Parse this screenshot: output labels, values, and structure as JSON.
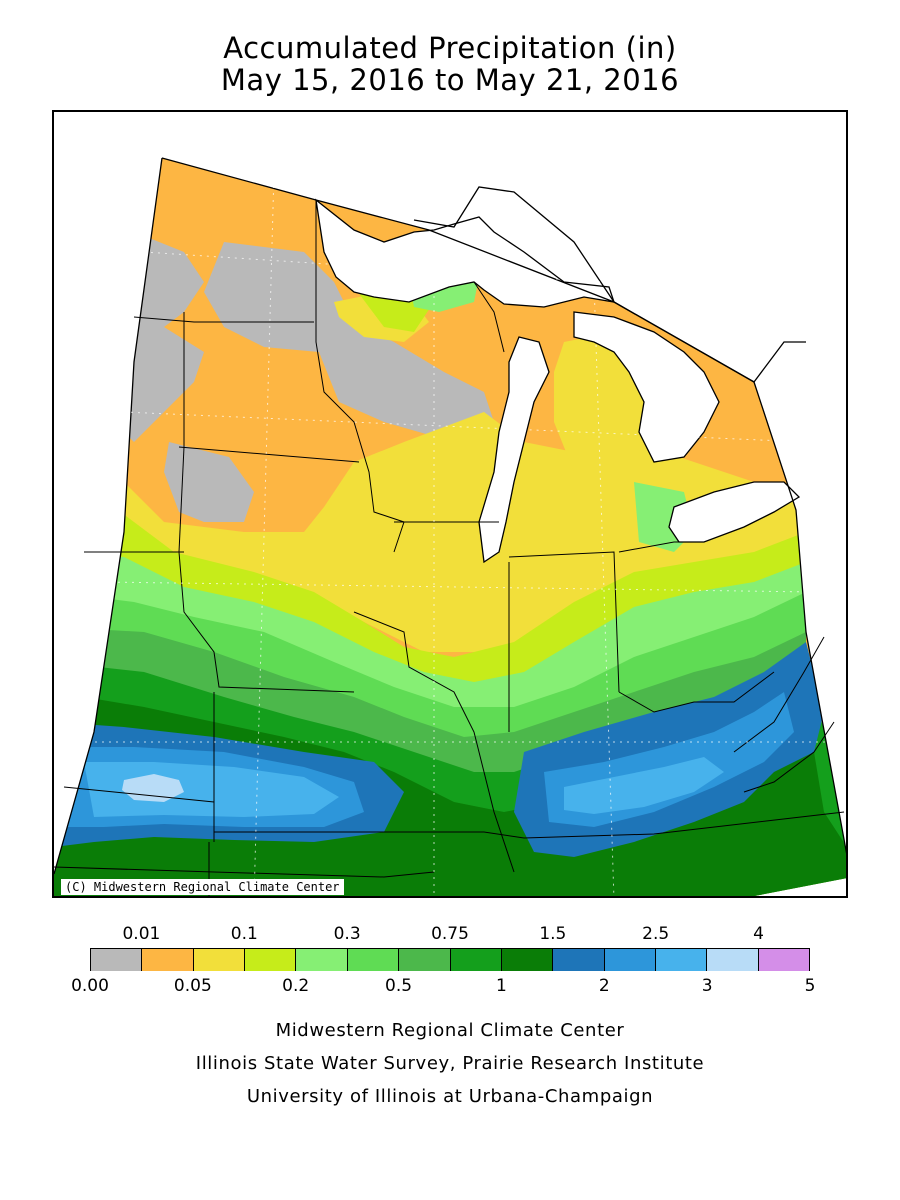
{
  "title": {
    "line1": "Accumulated Precipitation (in)",
    "line2": "May 15, 2016 to May 21, 2016"
  },
  "map": {
    "credit": "(C) Midwestern Regional Climate Center",
    "colors": {
      "gray": "#b9b9b9",
      "orange": "#fdb643",
      "yellow": "#f2df3a",
      "lime": "#c6ec1a",
      "ltgreen": "#86ef74",
      "green1": "#5fdc54",
      "green2": "#4cb84b",
      "green3": "#149f1c",
      "dkgreen": "#0a7d07",
      "blue1": "#1e75b8",
      "blue2": "#2d96da",
      "blue3": "#47b2ec",
      "ltblue": "#b8dcf7",
      "violet": "#d48ee8"
    }
  },
  "legend": {
    "upper_labels": [
      "0.01",
      "0.1",
      "0.3",
      "0.75",
      "1.5",
      "2.5",
      "4"
    ],
    "lower_labels": [
      "0.00",
      "0.05",
      "0.2",
      "0.5",
      "1",
      "2",
      "3",
      "5"
    ],
    "swatch_colors": [
      "#b9b9b9",
      "#fdb643",
      "#f2df3a",
      "#c6ec1a",
      "#86ef74",
      "#5fdc54",
      "#4cb84b",
      "#149f1c",
      "#0a7d07",
      "#1e75b8",
      "#2d96da",
      "#47b2ec",
      "#b8dcf7",
      "#d48ee8"
    ]
  },
  "footer": {
    "line1": "Midwestern Regional Climate Center",
    "line2": "Illinois State Water Survey, Prairie Research Institute",
    "line3": "University of Illinois at Urbana-Champaign"
  }
}
